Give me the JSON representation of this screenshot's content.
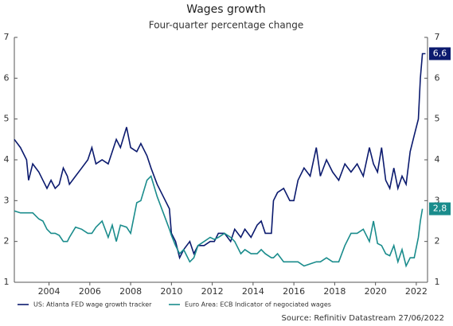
{
  "chart_data": {
    "type": "line",
    "title": "Wages growth",
    "subtitle": "Four-quarter percentage change",
    "source": "Source: Refinitiv Datastream 27/06/2022",
    "x": [
      2002.3,
      2002.6,
      2002.9,
      2003.0,
      2003.2,
      2003.5,
      2003.7,
      2003.9,
      2004.1,
      2004.3,
      2004.5,
      2004.7,
      2004.9,
      2005.0,
      2005.3,
      2005.6,
      2005.9,
      2006.1,
      2006.3,
      2006.6,
      2006.9,
      2007.1,
      2007.3,
      2007.5,
      2007.8,
      2008.0,
      2008.3,
      2008.5,
      2008.8,
      2009.0,
      2009.3,
      2009.6,
      2009.9,
      2010.0,
      2010.2,
      2010.4,
      2010.6,
      2010.9,
      2011.1,
      2011.3,
      2011.6,
      2011.9,
      2012.1,
      2012.3,
      2012.6,
      2012.9,
      2013.1,
      2013.4,
      2013.6,
      2013.9,
      2014.2,
      2014.4,
      2014.6,
      2014.9,
      2015.0,
      2015.2,
      2015.5,
      2015.8,
      2016.0,
      2016.2,
      2016.5,
      2016.8,
      2017.1,
      2017.3,
      2017.6,
      2017.9,
      2018.2,
      2018.5,
      2018.8,
      2019.1,
      2019.4,
      2019.7,
      2019.9,
      2020.1,
      2020.3,
      2020.5,
      2020.7,
      2020.9,
      2021.1,
      2021.3,
      2021.5,
      2021.7,
      2021.9,
      2022.1,
      2022.2,
      2022.3,
      2022.45
    ],
    "series": [
      {
        "name": "US: Atlanta FED wage growth tracker",
        "color": "#0b1a6e",
        "values": [
          4.5,
          4.3,
          4.0,
          3.5,
          3.9,
          3.7,
          3.5,
          3.3,
          3.5,
          3.3,
          3.4,
          3.8,
          3.6,
          3.4,
          3.6,
          3.8,
          4.0,
          4.3,
          3.9,
          4.0,
          3.9,
          4.2,
          4.5,
          4.3,
          4.8,
          4.3,
          4.2,
          4.4,
          4.1,
          3.8,
          3.4,
          3.1,
          2.8,
          2.2,
          2.0,
          1.6,
          1.8,
          2.0,
          1.7,
          1.9,
          1.9,
          2.0,
          2.0,
          2.2,
          2.2,
          2.0,
          2.3,
          2.1,
          2.3,
          2.1,
          2.4,
          2.5,
          2.2,
          2.2,
          3.0,
          3.2,
          3.3,
          3.0,
          3.0,
          3.5,
          3.8,
          3.6,
          4.3,
          3.6,
          4.0,
          3.7,
          3.5,
          3.9,
          3.7,
          3.9,
          3.6,
          4.3,
          3.9,
          3.7,
          4.3,
          3.5,
          3.3,
          3.8,
          3.3,
          3.6,
          3.4,
          4.2,
          4.6,
          5.0,
          6.0,
          6.6,
          6.6
        ],
        "value_labels": [
          null,
          null,
          null,
          null,
          null,
          null,
          null,
          null,
          null,
          null,
          null,
          null,
          null,
          null,
          null,
          null,
          null,
          null,
          null,
          null,
          null,
          null,
          null,
          null,
          null,
          null,
          null,
          null,
          null,
          null,
          null,
          null,
          null,
          null,
          null,
          null,
          null,
          null,
          null,
          null,
          null,
          null,
          null,
          null,
          null,
          null,
          null,
          null,
          null,
          null,
          null,
          null,
          null,
          null,
          null,
          null,
          null,
          null,
          null,
          null,
          null,
          null,
          null,
          null,
          null,
          null,
          null,
          null,
          null,
          null,
          null,
          null,
          null,
          null,
          null,
          null,
          null,
          null,
          null,
          null,
          null,
          null,
          null,
          null,
          null,
          null,
          "6,6"
        ]
      },
      {
        "name": "Euro Area: ECB Indicator of negociated wages",
        "color": "#1a8c8c",
        "values": [
          2.75,
          2.7,
          2.7,
          2.7,
          2.7,
          2.55,
          2.5,
          2.3,
          2.2,
          2.2,
          2.15,
          2.0,
          2.0,
          2.1,
          2.35,
          2.3,
          2.2,
          2.2,
          2.35,
          2.5,
          2.1,
          2.4,
          2.0,
          2.4,
          2.35,
          2.2,
          2.95,
          3.0,
          3.5,
          3.6,
          3.1,
          2.7,
          2.3,
          2.15,
          1.9,
          1.7,
          1.8,
          1.5,
          1.6,
          1.9,
          2.0,
          2.1,
          2.05,
          2.1,
          2.2,
          2.1,
          2.0,
          1.7,
          1.8,
          1.7,
          1.7,
          1.8,
          1.7,
          1.6,
          1.6,
          1.7,
          1.5,
          1.5,
          1.5,
          1.5,
          1.4,
          1.45,
          1.5,
          1.5,
          1.6,
          1.5,
          1.5,
          1.9,
          2.2,
          2.2,
          2.3,
          2.0,
          2.5,
          1.95,
          1.9,
          1.7,
          1.65,
          1.9,
          1.5,
          1.8,
          1.4,
          1.6,
          1.6,
          2.1,
          2.5,
          2.8,
          null
        ],
        "value_labels": [
          null,
          null,
          null,
          null,
          null,
          null,
          null,
          null,
          null,
          null,
          null,
          null,
          null,
          null,
          null,
          null,
          null,
          null,
          null,
          null,
          null,
          null,
          null,
          null,
          null,
          null,
          null,
          null,
          null,
          null,
          null,
          null,
          null,
          null,
          null,
          null,
          null,
          null,
          null,
          null,
          null,
          null,
          null,
          null,
          null,
          null,
          null,
          null,
          null,
          null,
          null,
          null,
          null,
          null,
          null,
          null,
          null,
          null,
          null,
          null,
          null,
          null,
          null,
          null,
          null,
          null,
          null,
          null,
          null,
          null,
          null,
          null,
          null,
          null,
          null,
          null,
          null,
          null,
          null,
          null,
          null,
          null,
          null,
          null,
          null,
          "2,8",
          null
        ]
      }
    ],
    "xlim": [
      2002.3,
      2022.55
    ],
    "xticks": [
      2004,
      2006,
      2008,
      2010,
      2012,
      2014,
      2016,
      2018,
      2020,
      2022
    ],
    "ylim": [
      1,
      7
    ],
    "yticks": [
      1,
      2,
      3,
      4,
      5,
      6,
      7
    ],
    "y2lim": [
      1,
      7
    ],
    "y2ticks": [
      1,
      2,
      3,
      4,
      5,
      6,
      7
    ],
    "legend": "bottom"
  }
}
